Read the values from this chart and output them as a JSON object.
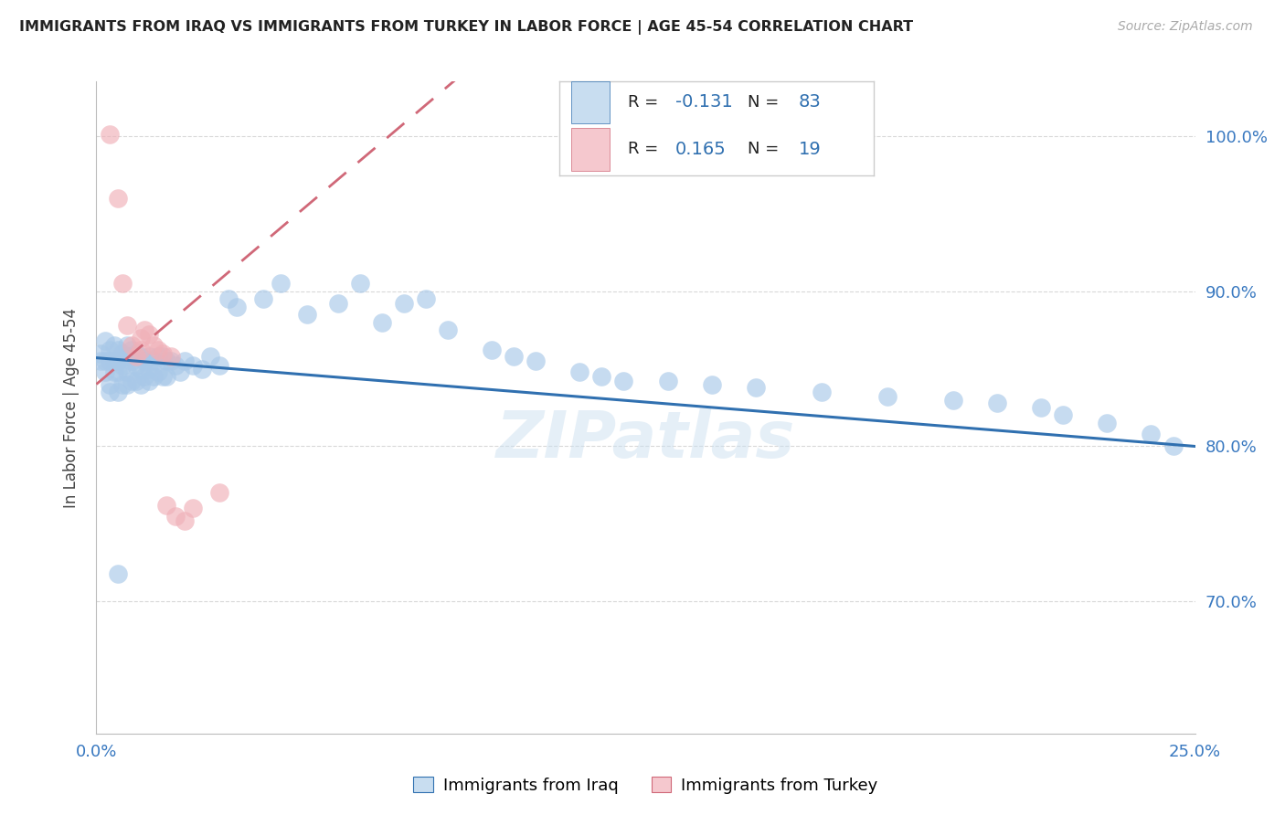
{
  "title": "IMMIGRANTS FROM IRAQ VS IMMIGRANTS FROM TURKEY IN LABOR FORCE | AGE 45-54 CORRELATION CHART",
  "source": "Source: ZipAtlas.com",
  "ylabel": "In Labor Force | Age 45-54",
  "xmin": 0.0,
  "xmax": 0.25,
  "ymin": 0.615,
  "ymax": 1.035,
  "yticks": [
    0.7,
    0.8,
    0.9,
    1.0
  ],
  "ytick_labels": [
    "70.0%",
    "80.0%",
    "90.0%",
    "100.0%"
  ],
  "xtick_positions": [
    0.0,
    0.05,
    0.1,
    0.15,
    0.2,
    0.25
  ],
  "xtick_labels": [
    "0.0%",
    "",
    "",
    "",
    "",
    "25.0%"
  ],
  "iraq_color": "#a8c8e8",
  "turkey_color": "#f0b0b8",
  "iraq_line_color": "#3070b0",
  "turkey_line_color": "#d06878",
  "legend_box_iraq_color": "#c8ddf0",
  "legend_box_turkey_color": "#f5c8ce",
  "legend_R_iraq": "-0.131",
  "legend_N_iraq": "83",
  "legend_R_turkey": "0.165",
  "legend_N_turkey": "19",
  "text_color": "#3070b0",
  "axis_label_color": "#3878c0",
  "grid_color": "#d8d8d8",
  "iraq_x": [
    0.001,
    0.001,
    0.002,
    0.002,
    0.002,
    0.003,
    0.003,
    0.003,
    0.003,
    0.004,
    0.004,
    0.004,
    0.005,
    0.005,
    0.005,
    0.005,
    0.006,
    0.006,
    0.006,
    0.007,
    0.007,
    0.007,
    0.007,
    0.008,
    0.008,
    0.008,
    0.009,
    0.009,
    0.009,
    0.01,
    0.01,
    0.01,
    0.011,
    0.011,
    0.012,
    0.012,
    0.012,
    0.013,
    0.013,
    0.014,
    0.014,
    0.015,
    0.015,
    0.016,
    0.016,
    0.017,
    0.018,
    0.019,
    0.02,
    0.022,
    0.024,
    0.026,
    0.028,
    0.03,
    0.032,
    0.038,
    0.042,
    0.048,
    0.055,
    0.06,
    0.065,
    0.07,
    0.075,
    0.08,
    0.09,
    0.095,
    0.1,
    0.11,
    0.115,
    0.12,
    0.13,
    0.14,
    0.15,
    0.165,
    0.18,
    0.195,
    0.205,
    0.215,
    0.22,
    0.23,
    0.24,
    0.245,
    0.005
  ],
  "iraq_y": [
    0.86,
    0.855,
    0.868,
    0.855,
    0.848,
    0.862,
    0.855,
    0.84,
    0.835,
    0.865,
    0.855,
    0.848,
    0.862,
    0.855,
    0.848,
    0.835,
    0.86,
    0.852,
    0.84,
    0.865,
    0.858,
    0.848,
    0.84,
    0.862,
    0.855,
    0.842,
    0.86,
    0.852,
    0.842,
    0.858,
    0.85,
    0.84,
    0.855,
    0.845,
    0.858,
    0.85,
    0.842,
    0.855,
    0.845,
    0.858,
    0.848,
    0.858,
    0.845,
    0.855,
    0.845,
    0.855,
    0.852,
    0.848,
    0.855,
    0.852,
    0.85,
    0.858,
    0.852,
    0.895,
    0.89,
    0.895,
    0.905,
    0.885,
    0.892,
    0.905,
    0.88,
    0.892,
    0.895,
    0.875,
    0.862,
    0.858,
    0.855,
    0.848,
    0.845,
    0.842,
    0.842,
    0.84,
    0.838,
    0.835,
    0.832,
    0.83,
    0.828,
    0.825,
    0.82,
    0.815,
    0.808,
    0.8,
    0.718
  ],
  "turkey_x": [
    0.003,
    0.005,
    0.006,
    0.007,
    0.008,
    0.009,
    0.01,
    0.01,
    0.011,
    0.012,
    0.013,
    0.014,
    0.015,
    0.016,
    0.017,
    0.018,
    0.02,
    0.022,
    0.028
  ],
  "turkey_y": [
    1.001,
    0.96,
    0.905,
    0.878,
    0.865,
    0.858,
    0.862,
    0.87,
    0.875,
    0.872,
    0.865,
    0.862,
    0.86,
    0.762,
    0.858,
    0.755,
    0.752,
    0.76,
    0.77
  ]
}
